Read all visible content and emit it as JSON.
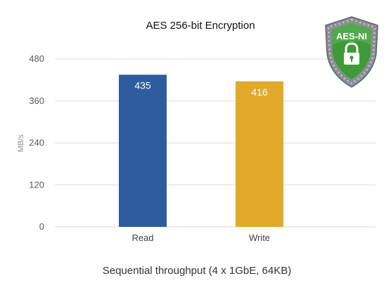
{
  "chart_data": {
    "type": "bar",
    "title": "AES 256-bit Encryption",
    "categories": [
      "Read",
      "Write"
    ],
    "values": [
      435,
      416
    ],
    "data_labels": [
      "435",
      "416"
    ],
    "ylabel": "MB/s",
    "xlabel": "Sequential throughput (4 x 1GbE, 64KB)",
    "ylim": [
      0,
      480
    ],
    "yticks": [
      0,
      120,
      240,
      360,
      480
    ],
    "ytick_labels": [
      "0",
      "120",
      "240",
      "360",
      "480"
    ],
    "grid": true,
    "legend": "none",
    "colors": [
      "#2e5c9e",
      "#e0a92a"
    ]
  },
  "badge": {
    "text": "AES-NI",
    "icon": "lock-icon",
    "colors": {
      "frame": "#8a8f94",
      "shield": "#3f9a3a",
      "lock": "#ffffff"
    }
  }
}
